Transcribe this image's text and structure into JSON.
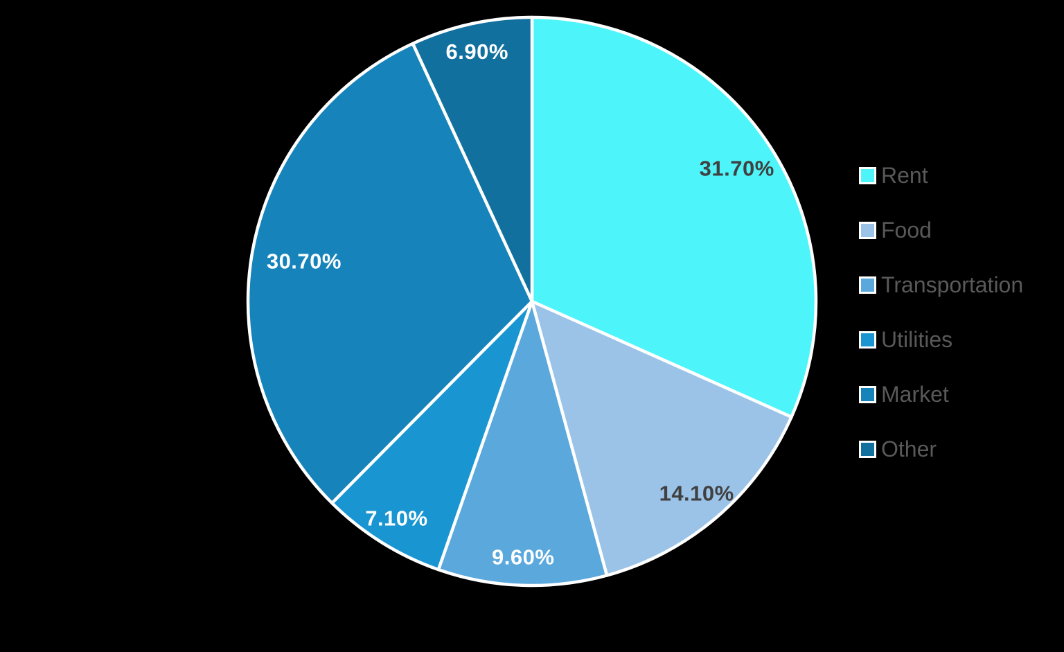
{
  "chart_data": {
    "type": "pie",
    "title": "",
    "categories": [
      "Rent",
      "Food",
      "Transportation",
      "Utilities",
      "Market",
      "Other"
    ],
    "values": [
      31.7,
      14.1,
      9.6,
      7.1,
      30.7,
      6.9
    ],
    "labels": [
      "31.70%",
      "14.10%",
      "9.60%",
      "7.10%",
      "30.70%",
      "6.90%"
    ],
    "colors": [
      "#4DF5FA",
      "#9AC3E7",
      "#5AA8DC",
      "#1996D1",
      "#1684BA",
      "#11709E"
    ],
    "label_colors": [
      "#404040",
      "#404040",
      "#FFFFFF",
      "#FFFFFF",
      "#FFFFFF",
      "#FFFFFF"
    ],
    "label_radius_factors": [
      0.86,
      0.89,
      0.9,
      0.9,
      0.815,
      0.9
    ],
    "start_angle_deg": 0,
    "direction": "clockwise",
    "slice_border_color": "#FFFFFF",
    "background_color": "#000000",
    "legend_position": "right",
    "legend_text_color": "#595959",
    "grid": false
  }
}
